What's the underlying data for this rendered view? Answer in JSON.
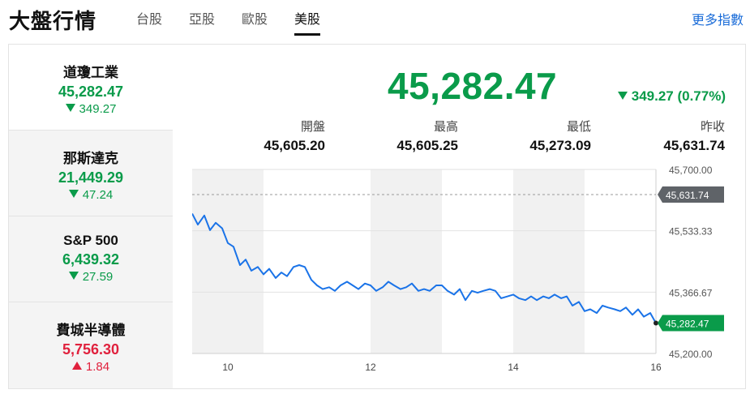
{
  "header": {
    "title": "大盤行情",
    "tabs": [
      {
        "label": "台股",
        "active": false
      },
      {
        "label": "亞股",
        "active": false
      },
      {
        "label": "歐股",
        "active": false
      },
      {
        "label": "美股",
        "active": true
      }
    ],
    "more_link": "更多指數"
  },
  "sidebar": {
    "items": [
      {
        "name": "道瓊工業",
        "value": "45,282.47",
        "change": "349.27",
        "direction": "down",
        "selected": true
      },
      {
        "name": "那斯達克",
        "value": "21,449.29",
        "change": "47.24",
        "direction": "down",
        "selected": false
      },
      {
        "name": "S&P 500",
        "value": "6,439.32",
        "change": "27.59",
        "direction": "down",
        "selected": false
      },
      {
        "name": "費城半導體",
        "value": "5,756.30",
        "change": "1.84",
        "direction": "up",
        "selected": false
      }
    ]
  },
  "quote": {
    "value": "45,282.47",
    "change": "349.27 (0.77%)",
    "stats": [
      {
        "label": "開盤",
        "value": "45,605.20"
      },
      {
        "label": "最高",
        "value": "45,605.25"
      },
      {
        "label": "最低",
        "value": "45,273.09"
      },
      {
        "label": "昨收",
        "value": "45,631.74"
      }
    ]
  },
  "colors": {
    "down": "#0a9b4a",
    "up": "#e0213d",
    "line": "#1a73e8",
    "accent": "#1a6cd8"
  },
  "chart_data": {
    "type": "line",
    "x_tick_labels": [
      "10",
      "12",
      "14",
      "16"
    ],
    "y_tick_labels": [
      "45,700.00",
      "45,533.33",
      "45,366.67",
      "45,200.00"
    ],
    "ylim": [
      45200,
      45700
    ],
    "xlim": [
      9.5,
      16
    ],
    "prev_close": 45631.74,
    "prev_close_label": "45,631.74",
    "last_label": "45,282.47",
    "last_value": 45282.47,
    "series": [
      {
        "x": [
          9.5,
          9.58,
          9.67,
          9.75,
          9.83,
          9.92,
          10.0,
          10.08,
          10.17,
          10.25,
          10.33,
          10.42,
          10.5,
          10.58,
          10.67,
          10.75,
          10.83,
          10.92,
          11.0,
          11.08,
          11.17,
          11.25,
          11.33,
          11.42,
          11.5,
          11.58,
          11.67,
          11.75,
          11.83,
          11.92,
          12.0,
          12.08,
          12.17,
          12.25,
          12.33,
          12.42,
          12.5,
          12.58,
          12.67,
          12.75,
          12.83,
          12.92,
          13.0,
          13.08,
          13.17,
          13.25,
          13.33,
          13.42,
          13.5,
          13.58,
          13.67,
          13.75,
          13.83,
          13.92,
          14.0,
          14.08,
          14.17,
          14.25,
          14.33,
          14.42,
          14.5,
          14.58,
          14.67,
          14.75,
          14.83,
          14.92,
          15.0,
          15.08,
          15.17,
          15.25,
          15.33,
          15.42,
          15.5,
          15.58,
          15.67,
          15.75,
          15.83,
          15.92,
          16.0
        ],
        "y": [
          45580,
          45550,
          45575,
          45535,
          45555,
          45540,
          45500,
          45490,
          45440,
          45455,
          45425,
          45435,
          45415,
          45430,
          45405,
          45420,
          45410,
          45435,
          45440,
          45435,
          45400,
          45385,
          45375,
          45380,
          45370,
          45385,
          45395,
          45385,
          45375,
          45390,
          45385,
          45370,
          45380,
          45395,
          45385,
          45375,
          45380,
          45390,
          45370,
          45375,
          45370,
          45385,
          45385,
          45370,
          45360,
          45375,
          45345,
          45370,
          45365,
          45370,
          45375,
          45370,
          45350,
          45355,
          45360,
          45350,
          45345,
          45355,
          45345,
          45355,
          45350,
          45360,
          45350,
          45355,
          45330,
          45340,
          45315,
          45320,
          45310,
          45330,
          45325,
          45320,
          45315,
          45325,
          45305,
          45320,
          45300,
          45310,
          45282.47
        ]
      }
    ]
  }
}
